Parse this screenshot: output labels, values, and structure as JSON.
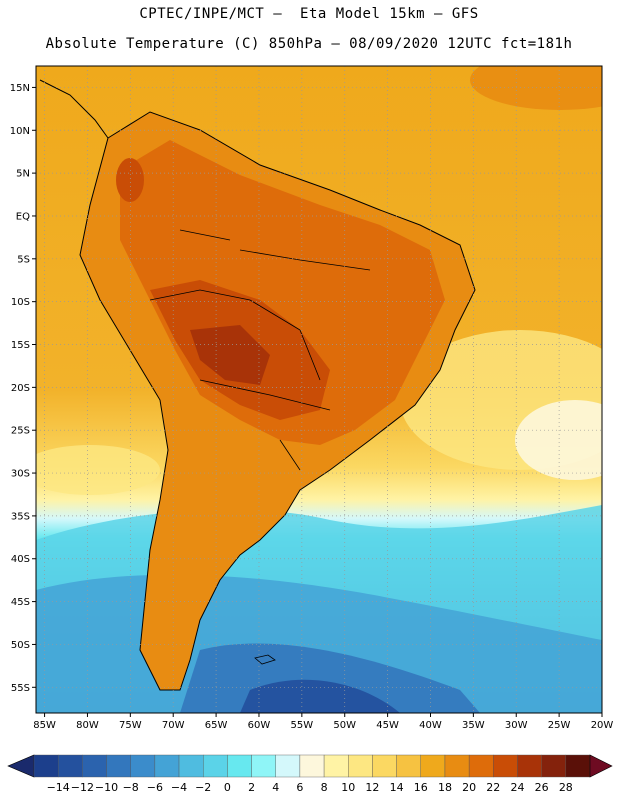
{
  "header": {
    "line1": "CPTEC/INPE/MCT –  Eta Model 15km – GFS",
    "line2": "Absolute Temperature (C) 850hPa – 08/09/2020 12UTC fct=181h"
  },
  "map": {
    "lat_labels": [
      "15N",
      "10N",
      "5N",
      "EQ",
      "5S",
      "10S",
      "15S",
      "20S",
      "25S",
      "30S",
      "35S",
      "40S",
      "45S",
      "50S",
      "55S"
    ],
    "lon_labels": [
      "85W",
      "80W",
      "75W",
      "70W",
      "65W",
      "60W",
      "55W",
      "50W",
      "45W",
      "40W",
      "35W",
      "30W",
      "25W",
      "20W"
    ],
    "lat_range": [
      17.5,
      -58
    ],
    "lon_range": [
      -86,
      -20
    ],
    "grid": true,
    "grid_style": "dotted"
  },
  "colorbar": {
    "labels": [
      "-14",
      "-12",
      "-10",
      "-8",
      "-6",
      "-4",
      "-2",
      "0",
      "2",
      "4",
      "6",
      "8",
      "10",
      "12",
      "14",
      "16",
      "18",
      "20",
      "22",
      "24",
      "26",
      "28"
    ],
    "colors": [
      "#1c3f8c",
      "#24519e",
      "#2b63ae",
      "#3377bd",
      "#3b8ccb",
      "#44a3d6",
      "#4fbce0",
      "#5bd3e8",
      "#67e8ef",
      "#8ff5f7",
      "#d4f8fb",
      "#fdf7dc",
      "#fff3a5",
      "#fde782",
      "#fbd862",
      "#f6c241",
      "#efa91c",
      "#e88c12",
      "#de6c0a",
      "#c94d06",
      "#a83308",
      "#84220c",
      "#5a1008"
    ],
    "left_arrow": "#1a2a6c",
    "right_arrow": "#6e0b22"
  }
}
